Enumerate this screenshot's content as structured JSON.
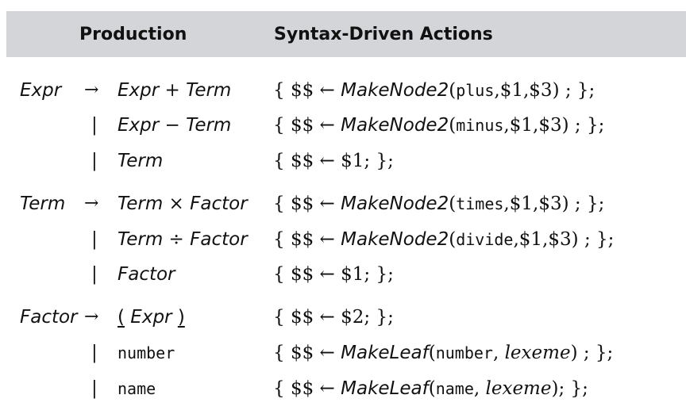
{
  "header": {
    "production": "Production",
    "actions": "Syntax-Driven Actions"
  },
  "symbols": {
    "arrow": "→",
    "alt": "|",
    "lbrace": "{",
    "rbrace": "};",
    "dollars": "$$",
    "assign": "←",
    "lparen": "(",
    "rparen": ")",
    "semi": ";"
  },
  "rules": [
    {
      "lhs": "Expr",
      "a": "Expr",
      "op": "+",
      "b": "Term",
      "fn": "MakeNode2",
      "args": [
        "plus",
        "$1",
        "$3"
      ]
    },
    {
      "a": "Expr",
      "op": "−",
      "b": "Term",
      "fn": "MakeNode2",
      "args": [
        "minus",
        "$1",
        "$3"
      ]
    },
    {
      "a": "Term",
      "value": "$1"
    },
    {
      "lhs": "Term",
      "a": "Term",
      "op": "×",
      "b": "Factor",
      "fn": "MakeNode2",
      "args": [
        "times",
        "$1",
        "$3"
      ]
    },
    {
      "a": "Term",
      "op": "÷",
      "b": "Factor",
      "fn": "MakeNode2",
      "args": [
        "divide",
        "$1",
        "$3"
      ]
    },
    {
      "a": "Factor",
      "value": "$1"
    },
    {
      "lhs": "Factor",
      "lp": "(",
      "a": "Expr",
      "rp": ")",
      "value": "$2"
    },
    {
      "term": "number",
      "fn": "MakeLeaf",
      "args": [
        "number",
        "lexeme"
      ]
    },
    {
      "term": "name",
      "fn": "MakeLeaf",
      "args": [
        "name",
        "lexeme"
      ]
    }
  ]
}
